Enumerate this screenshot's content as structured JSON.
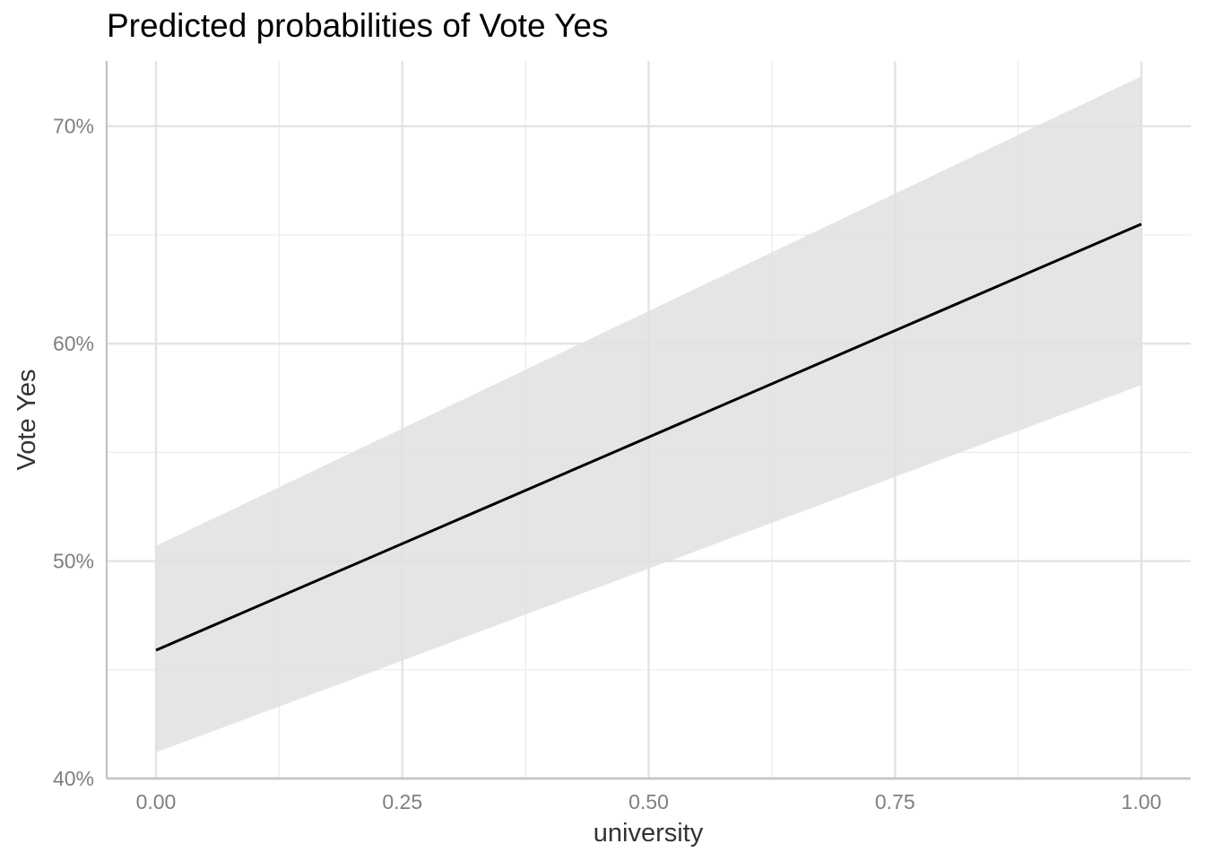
{
  "chart_data": {
    "type": "line",
    "title": "Predicted probabilities of Vote Yes",
    "xlabel": "university",
    "ylabel": "Vote Yes",
    "xlim": [
      -0.05,
      1.05
    ],
    "ylim": [
      0.4,
      0.73
    ],
    "x_ticks": [
      0.0,
      0.25,
      0.5,
      0.75,
      1.0
    ],
    "x_tick_labels": [
      "0.00",
      "0.25",
      "0.50",
      "0.75",
      "1.00"
    ],
    "y_ticks": [
      0.4,
      0.5,
      0.6,
      0.7
    ],
    "y_tick_labels": [
      "40%",
      "50%",
      "60%",
      "70%"
    ],
    "grid": true,
    "legend": "none",
    "series": [
      {
        "x": [
          0.0,
          1.0
        ],
        "y": [
          0.459,
          0.655
        ],
        "ci_low": [
          0.412,
          0.581
        ],
        "ci_high": [
          0.507,
          0.723
        ],
        "line_color": "#000000",
        "band_color": "#e0e0e0"
      }
    ]
  }
}
